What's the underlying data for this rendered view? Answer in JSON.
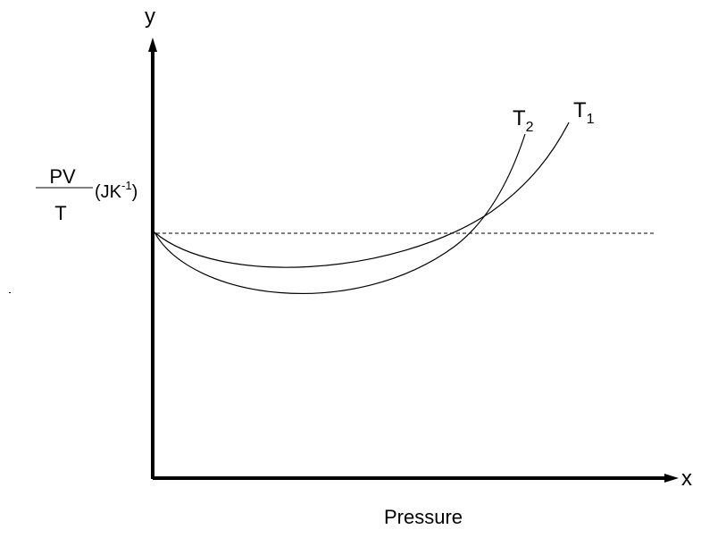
{
  "axes": {
    "y_letter": "y",
    "x_letter": "x",
    "x_label": "Pressure",
    "y_label": {
      "numerator": "PV",
      "denominator": "T",
      "unit_prefix": "(JK",
      "unit_sup": "-1",
      "unit_suffix": ")"
    }
  },
  "curves": [
    {
      "name": "T",
      "subscript": "1"
    },
    {
      "name": "T",
      "subscript": "2"
    }
  ],
  "reference_line": {
    "style": "dashed"
  }
}
